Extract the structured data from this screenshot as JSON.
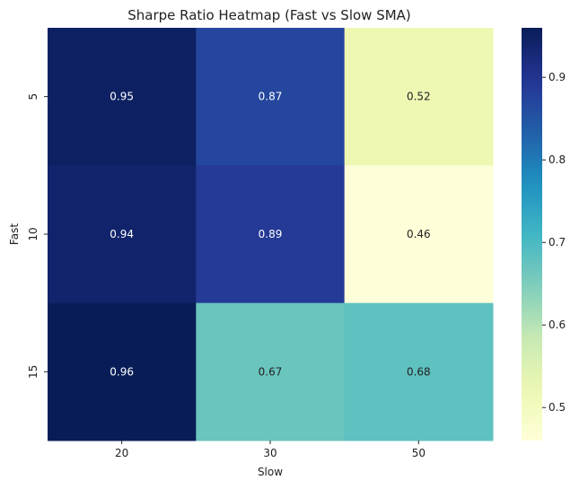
{
  "chart_data": {
    "type": "heatmap",
    "title": "Sharpe Ratio Heatmap (Fast vs Slow SMA)",
    "xlabel": "Slow",
    "ylabel": "Fast",
    "x_categories": [
      "20",
      "30",
      "50"
    ],
    "y_categories": [
      "5",
      "10",
      "15"
    ],
    "values": [
      [
        0.95,
        0.87,
        0.52
      ],
      [
        0.94,
        0.89,
        0.46
      ],
      [
        0.96,
        0.67,
        0.68
      ]
    ],
    "value_labels": [
      [
        "0.95",
        "0.87",
        "0.52"
      ],
      [
        "0.94",
        "0.89",
        "0.46"
      ],
      [
        "0.96",
        "0.67",
        "0.68"
      ]
    ],
    "colormap": "YlGnBu",
    "color_range": [
      0.46,
      0.96
    ],
    "colorbar_ticks": [
      "0.5",
      "0.6",
      "0.7",
      "0.8",
      "0.9"
    ],
    "colorbar_tick_values": [
      0.5,
      0.6,
      0.7,
      0.8,
      0.9
    ]
  }
}
